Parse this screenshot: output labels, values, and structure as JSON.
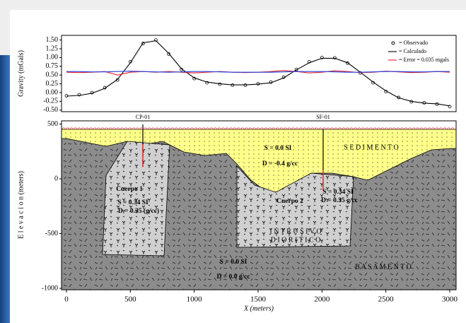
{
  "chart_data": [
    {
      "type": "line",
      "ylabel": "Gravity (mGals)",
      "x": [
        0,
        100,
        200,
        300,
        400,
        500,
        600,
        700,
        800,
        900,
        1000,
        1100,
        1200,
        1300,
        1400,
        1500,
        1600,
        1700,
        1800,
        1900,
        2000,
        2100,
        2200,
        2300,
        2400,
        2500,
        2600,
        2700,
        2800,
        2900,
        3000
      ],
      "xlim": [
        0,
        3000
      ],
      "ylim": [
        -0.5,
        1.5
      ],
      "yticks": [
        {
          "value": -0.5,
          "label": "-0.50"
        },
        {
          "value": -0.25,
          "label": "-0.25"
        },
        {
          "value": 0,
          "label": "0.00"
        },
        {
          "value": 0.25,
          "label": "0.25"
        },
        {
          "value": 0.5,
          "label": "0.50"
        },
        {
          "value": 0.75,
          "label": "0.75"
        },
        {
          "value": 1,
          "label": "1.00"
        },
        {
          "value": 1.25,
          "label": "1.25"
        },
        {
          "value": 1.5,
          "label": "1.50"
        }
      ],
      "legend": "upper right",
      "series": [
        {
          "name": "= Observado",
          "marker": "circle",
          "color": "#000000",
          "values": [
            -0.09,
            -0.06,
            0.0,
            0.14,
            0.36,
            0.88,
            1.4,
            1.5,
            1.1,
            0.66,
            0.4,
            0.28,
            0.24,
            0.21,
            0.21,
            0.25,
            0.3,
            0.44,
            0.66,
            0.88,
            1.0,
            0.99,
            0.84,
            0.56,
            0.28,
            0.03,
            -0.14,
            -0.26,
            -0.29,
            -0.33,
            -0.4
          ]
        },
        {
          "name": "= Calculado",
          "color": "#000000",
          "values": [
            -0.1,
            -0.08,
            -0.02,
            0.12,
            0.38,
            0.85,
            1.42,
            1.48,
            1.12,
            0.68,
            0.42,
            0.3,
            0.25,
            0.22,
            0.22,
            0.24,
            0.28,
            0.42,
            0.65,
            0.85,
            0.98,
            0.98,
            0.85,
            0.58,
            0.3,
            0.05,
            -0.15,
            -0.25,
            -0.3,
            -0.32,
            -0.38
          ]
        },
        {
          "name": "= Error = 0.035 mgals",
          "color": "#e8202a",
          "values": [
            0.58,
            0.57,
            0.58,
            0.6,
            0.5,
            0.58,
            0.6,
            0.58,
            0.6,
            0.58,
            0.56,
            0.58,
            0.6,
            0.58,
            0.57,
            0.58,
            0.6,
            0.63,
            0.6,
            0.56,
            0.58,
            0.62,
            0.6,
            0.57,
            0.58,
            0.61,
            0.59,
            0.57,
            0.58,
            0.6,
            0.58
          ]
        },
        {
          "color": "#2040e0",
          "values": [
            0.6,
            0.6,
            0.59,
            0.59,
            0.6,
            0.61,
            0.6,
            0.59,
            0.58,
            0.59,
            0.6,
            0.6,
            0.59,
            0.58,
            0.58,
            0.58,
            0.58,
            0.59,
            0.6,
            0.6,
            0.6,
            0.59,
            0.58,
            0.58,
            0.59,
            0.6,
            0.6,
            0.59,
            0.59,
            0.6,
            0.6
          ]
        }
      ]
    },
    {
      "type": "section",
      "xlabel": "X (meters)",
      "ylabel": "E l e v a c i o n (meters)",
      "xlim": [
        0,
        3000
      ],
      "xticks": [
        0,
        500,
        1000,
        1500,
        2000,
        2500,
        3000
      ],
      "ylim": [
        -1000,
        500
      ],
      "yticks": [
        -1000,
        -500,
        0,
        500
      ],
      "annotations": [
        "CP-01",
        "SF-01",
        "S E D I M E N T O",
        "S = 0.0 SI",
        "D = -0.4 g/cc",
        "Cuerpo 1",
        "S = 0.34 SI",
        "D = 0.35 (g/cc)",
        "Cuerpo 2",
        "S = 0.34 SI",
        "D = 0.35 g/cc",
        "I N T R U S I V O",
        "D I O R I T I C O",
        "S = 0.0 SI",
        "D = 0.0 g/cc",
        "B A S A M E N T O"
      ]
    }
  ]
}
